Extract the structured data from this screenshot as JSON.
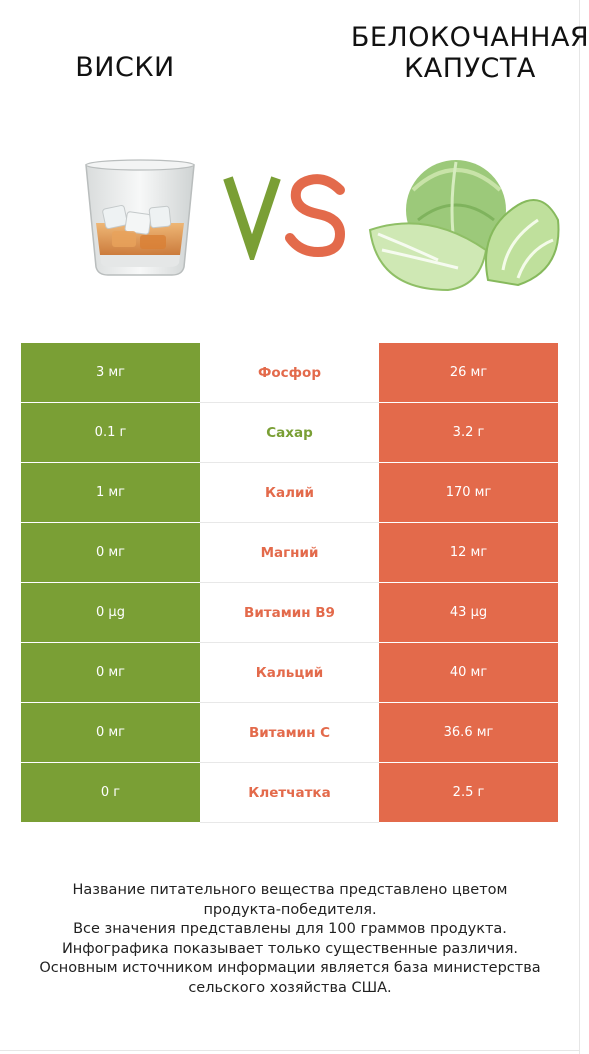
{
  "header": {
    "left_title": "ВИСКИ",
    "right_title_line1": "БЕЛОКОЧАННАЯ",
    "right_title_line2": "КАПУСТА",
    "vs_label": "VS"
  },
  "colors": {
    "left_product": "#7a9f35",
    "right_product": "#e36a4b",
    "vs_v": "#7a9f35",
    "vs_s": "#e36a4b"
  },
  "rows": [
    {
      "left": "3 мг",
      "nutrient": "Фосфор",
      "right": "26 мг",
      "winner": "right"
    },
    {
      "left": "0.1 г",
      "nutrient": "Сахар",
      "right": "3.2 г",
      "winner": "left"
    },
    {
      "left": "1 мг",
      "nutrient": "Калий",
      "right": "170 мг",
      "winner": "right"
    },
    {
      "left": "0 мг",
      "nutrient": "Магний",
      "right": "12 мг",
      "winner": "right"
    },
    {
      "left": "0 µg",
      "nutrient": "Витамин B9",
      "right": "43 µg",
      "winner": "right"
    },
    {
      "left": "0 мг",
      "nutrient": "Кальций",
      "right": "40 мг",
      "winner": "right"
    },
    {
      "left": "0 мг",
      "nutrient": "Витамин C",
      "right": "36.6 мг",
      "winner": "right"
    },
    {
      "left": "0 г",
      "nutrient": "Клетчатка",
      "right": "2.5 г",
      "winner": "right"
    }
  ],
  "footer": {
    "line1": "Название питательного вещества представлено цветом",
    "line2": "продукта-победителя.",
    "line3": "Все значения представлены для 100 граммов продукта.",
    "line4": "Инфографика показывает только существенные различия.",
    "line5": "Основным источником информации является база министерства",
    "line6": "сельского хозяйства США."
  },
  "images": {
    "left": "whisky-glass-icon",
    "right": "cabbage-icon"
  }
}
